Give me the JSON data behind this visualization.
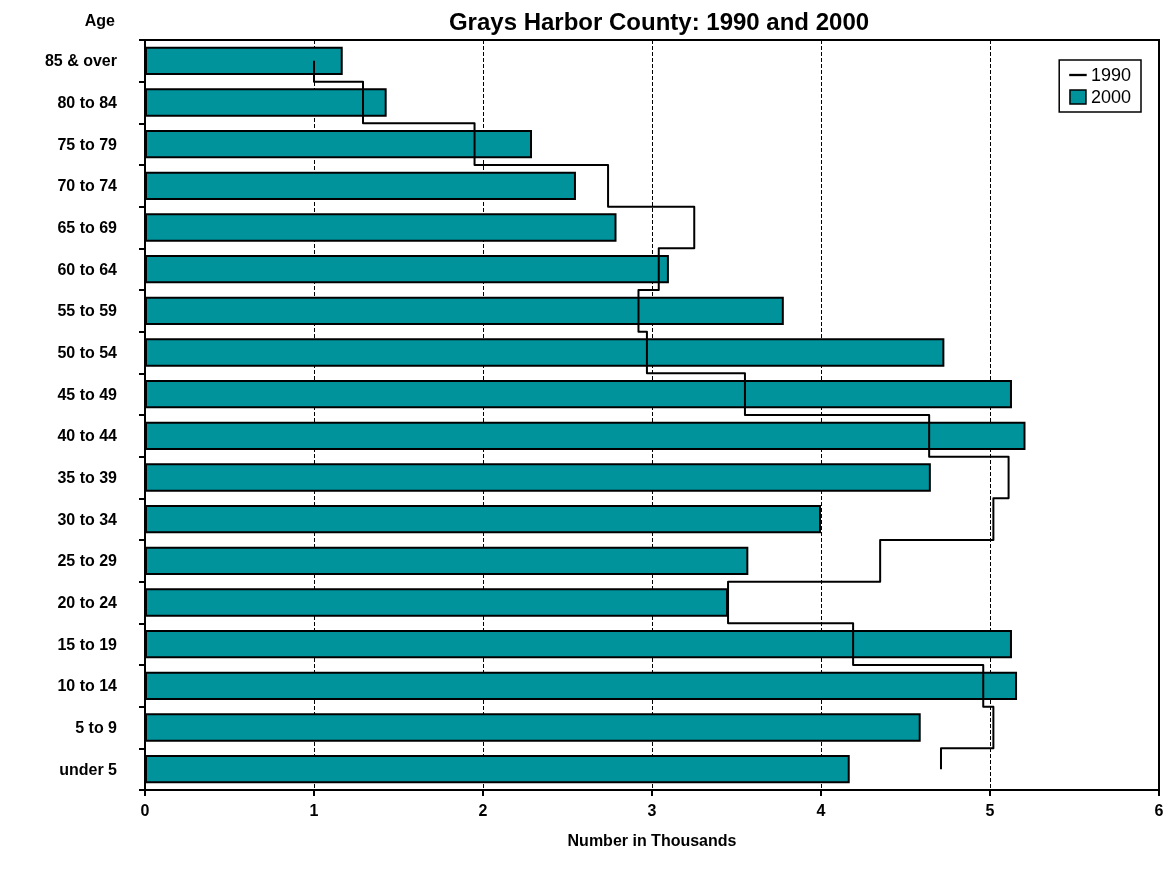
{
  "chart_data": {
    "type": "bar",
    "orientation": "horizontal",
    "title": "Grays Harbor County: 1990 and 2000",
    "xlabel": "Number in Thousands",
    "ylabel": "Age",
    "categories": [
      "85 & over",
      "80 to 84",
      "75 to 79",
      "70 to 74",
      "65 to 69",
      "60 to 64",
      "55 to 59",
      "50 to 54",
      "45 to 49",
      "40 to 44",
      "35 to 39",
      "30 to 34",
      "25 to 29",
      "20 to 24",
      "15 to 19",
      "10 to 14",
      "5 to 9",
      "under 5"
    ],
    "series": [
      {
        "name": "1990",
        "type": "step",
        "color": "#000000",
        "values": [
          1.0,
          1.29,
          1.95,
          2.74,
          3.25,
          3.04,
          2.92,
          2.97,
          3.55,
          4.64,
          5.11,
          5.02,
          4.35,
          3.45,
          4.19,
          4.96,
          5.02,
          4.71
        ]
      },
      {
        "name": "2000",
        "color": "#00939c",
        "values": [
          1.17,
          1.43,
          2.29,
          2.55,
          2.79,
          3.1,
          3.78,
          4.73,
          5.13,
          5.21,
          4.65,
          4.0,
          3.57,
          3.45,
          5.13,
          5.16,
          4.59,
          4.17
        ]
      }
    ],
    "xlim": [
      0,
      6
    ],
    "xticks": [
      0,
      1,
      2,
      3,
      4,
      5,
      6
    ],
    "grid": "x",
    "legend": "top right",
    "marker": "none",
    "line_style": "solid"
  }
}
